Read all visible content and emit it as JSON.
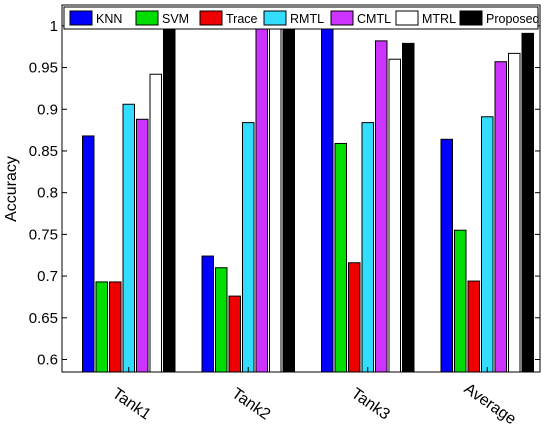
{
  "chart_data": {
    "type": "bar",
    "title": "",
    "xlabel": "",
    "ylabel": "Accuracy",
    "ylim": [
      0.585,
      1.025
    ],
    "yticks": [
      0.6,
      0.65,
      0.7,
      0.75,
      0.8,
      0.85,
      0.9,
      0.95,
      1
    ],
    "ytick_labels": [
      "0.6",
      "0.65",
      "0.7",
      "0.75",
      "0.8",
      "0.85",
      "0.9",
      "0.95",
      "1"
    ],
    "categories": [
      "Tank1",
      "Tank2",
      "Tank3",
      "Average"
    ],
    "legend_position": "top",
    "grid": false,
    "series": [
      {
        "name": "KNN",
        "color": "#0000ff",
        "values": [
          0.868,
          0.724,
          1.0,
          0.864
        ]
      },
      {
        "name": "SVM",
        "color": "#00dd00",
        "values": [
          0.693,
          0.71,
          0.859,
          0.755
        ]
      },
      {
        "name": "Trace",
        "color": "#ee0000",
        "values": [
          0.693,
          0.676,
          0.716,
          0.694
        ]
      },
      {
        "name": "RMTL",
        "color": "#33ddff",
        "values": [
          0.906,
          0.884,
          0.884,
          0.891
        ]
      },
      {
        "name": "CMTL",
        "color": "#cc33ff",
        "values": [
          0.888,
          1.0,
          0.982,
          0.957
        ]
      },
      {
        "name": "MTRL",
        "color": "#ffffff",
        "values": [
          0.942,
          1.0,
          0.96,
          0.967
        ]
      },
      {
        "name": "Proposed",
        "color": "#000000",
        "values": [
          0.996,
          1.0,
          0.979,
          0.991
        ]
      }
    ]
  }
}
